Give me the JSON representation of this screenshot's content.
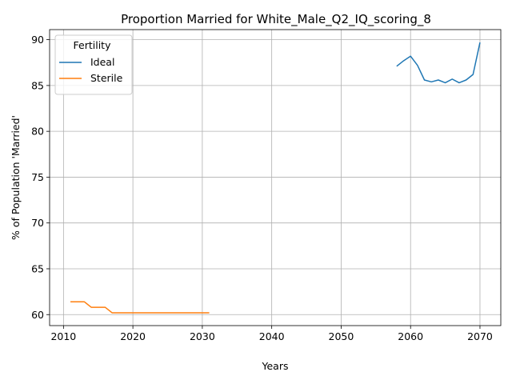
{
  "chart_data": {
    "type": "line",
    "title": "Proportion Married for White_Male_Q2_IQ_scoring_8",
    "xlabel": "Years",
    "ylabel": "% of Population 'Married'",
    "xlim": [
      2008,
      2073
    ],
    "ylim": [
      58.8,
      91.1
    ],
    "xticks": [
      2010,
      2020,
      2030,
      2040,
      2050,
      2060,
      2070
    ],
    "yticks": [
      60,
      65,
      70,
      75,
      80,
      85,
      90
    ],
    "grid": true,
    "legend": {
      "title": "Fertility",
      "placement": "top-left"
    },
    "series": [
      {
        "name": "Ideal",
        "color": "#1f77b4",
        "x": [
          2058,
          2059,
          2060,
          2061,
          2062,
          2063,
          2064,
          2065,
          2066,
          2067,
          2068,
          2069,
          2070
        ],
        "y": [
          87.1,
          87.7,
          88.2,
          87.2,
          85.6,
          85.4,
          85.6,
          85.3,
          85.7,
          85.3,
          85.6,
          86.2,
          89.7
        ]
      },
      {
        "name": "Sterile",
        "color": "#ff7f0e",
        "x": [
          2011,
          2012,
          2013,
          2014,
          2015,
          2016,
          2017,
          2018,
          2019,
          2020,
          2021,
          2022,
          2023,
          2024,
          2025,
          2026,
          2027,
          2028,
          2029,
          2030,
          2031
        ],
        "y": [
          61.4,
          61.4,
          61.4,
          60.8,
          60.8,
          60.8,
          60.2,
          60.2,
          60.2,
          60.2,
          60.2,
          60.2,
          60.2,
          60.2,
          60.2,
          60.2,
          60.2,
          60.2,
          60.2,
          60.2,
          60.2
        ]
      }
    ]
  }
}
